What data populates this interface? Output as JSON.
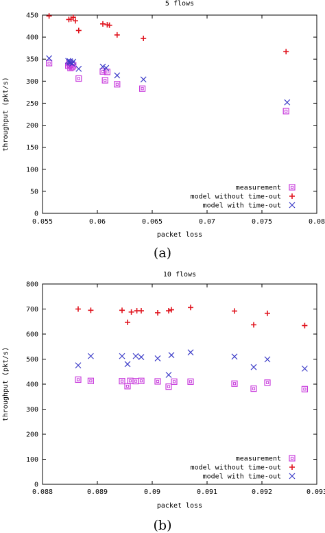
{
  "legend": {
    "measurement": "measurement",
    "model_without": "model without time-out",
    "model_with": "model with time-out"
  },
  "colors": {
    "measurement": "#c83cdc",
    "model_without": "#e0141e",
    "model_with": "#3c3cc8"
  },
  "panels": [
    {
      "caption": "(a)",
      "chart_data": {
        "type": "scatter",
        "title": "5 flows",
        "xlabel": "packet loss",
        "ylabel": "throughput (pkt/s)",
        "xlim": [
          0.055,
          0.08
        ],
        "ylim": [
          0,
          450
        ],
        "xticks": [
          "0.055",
          "0.06",
          "0.065",
          "0.07",
          "0.075",
          "0.08"
        ],
        "xtick_values": [
          0.055,
          0.06,
          0.065,
          0.07,
          0.075,
          0.08
        ],
        "yticks": [
          "0",
          "50",
          "100",
          "150",
          "200",
          "250",
          "300",
          "350",
          "400",
          "450"
        ],
        "ytick_values": [
          0,
          50,
          100,
          150,
          200,
          250,
          300,
          350,
          400,
          450
        ],
        "legend_position": "bottom-right",
        "series": [
          {
            "name": "measurement",
            "x": [
              0.0556,
              0.05735,
              0.05745,
              0.0575,
              0.05755,
              0.0577,
              0.0578,
              0.0583,
              0.0605,
              0.0607,
              0.0609,
              0.0618,
              0.0641,
              0.0772
            ],
            "y": [
              341,
              335,
              342,
              337,
              330,
              332,
              336,
              306,
              322,
              302,
              321,
              293,
              283,
              232
            ]
          },
          {
            "name": "model without time-out",
            "x": [
              0.0556,
              0.0574,
              0.0576,
              0.0578,
              0.058,
              0.0583,
              0.0605,
              0.0609,
              0.0611,
              0.0618,
              0.0642,
              0.0772
            ],
            "y": [
              448,
              440,
              441,
              445,
              437,
              415,
              430,
              428,
              427,
              405,
              397,
              367
            ]
          },
          {
            "name": "model with time-out",
            "x": [
              0.0556,
              0.05735,
              0.05745,
              0.0575,
              0.05755,
              0.0577,
              0.0578,
              0.0583,
              0.0605,
              0.0608,
              0.0618,
              0.0642,
              0.0773
            ],
            "y": [
              352,
              346,
              343,
              345,
              342,
              340,
              344,
              328,
              333,
              330,
              313,
              304,
              252
            ]
          }
        ]
      }
    },
    {
      "caption": "(b)",
      "chart_data": {
        "type": "scatter",
        "title": "10 flows",
        "xlabel": "packet loss",
        "ylabel": "throughput (pkt/s)",
        "xlim": [
          0.088,
          0.093
        ],
        "ylim": [
          0,
          800
        ],
        "xticks": [
          "0.088",
          "0.089",
          "0.09",
          "0.091",
          "0.092",
          "0.093"
        ],
        "xtick_values": [
          0.088,
          0.089,
          0.09,
          0.091,
          0.092,
          0.093
        ],
        "yticks": [
          "0",
          "100",
          "200",
          "300",
          "400",
          "500",
          "600",
          "700",
          "800"
        ],
        "ytick_values": [
          0,
          100,
          200,
          300,
          400,
          500,
          600,
          700,
          800
        ],
        "legend_position": "bottom-right",
        "series": [
          {
            "name": "measurement",
            "x": [
              0.08865,
              0.08888,
              0.08945,
              0.08955,
              0.0896,
              0.0897,
              0.0898,
              0.0901,
              0.0903,
              0.0904,
              0.0907,
              0.0915,
              0.09185,
              0.0921,
              0.09278
            ],
            "y": [
              418,
              413,
              412,
              392,
              413,
              412,
              413,
              411,
              390,
              410,
              410,
              402,
              382,
              406,
              380
            ]
          },
          {
            "name": "model without time-out",
            "x": [
              0.08865,
              0.08888,
              0.08945,
              0.08955,
              0.08962,
              0.08972,
              0.0898,
              0.0901,
              0.0903,
              0.09035,
              0.0907,
              0.0915,
              0.09185,
              0.0921,
              0.09278
            ],
            "y": [
              700,
              695,
              695,
              647,
              688,
              693,
              693,
              685,
              693,
              697,
              706,
              692,
              637,
              683,
              634
            ]
          },
          {
            "name": "model with time-out",
            "x": [
              0.08865,
              0.08888,
              0.08945,
              0.08955,
              0.0897,
              0.0898,
              0.0901,
              0.0903,
              0.09035,
              0.0907,
              0.0915,
              0.09185,
              0.0921,
              0.09278
            ],
            "y": [
              475,
              512,
              512,
              480,
              512,
              508,
              503,
              437,
              516,
              527,
              510,
              468,
              499,
              462
            ]
          }
        ]
      }
    }
  ]
}
